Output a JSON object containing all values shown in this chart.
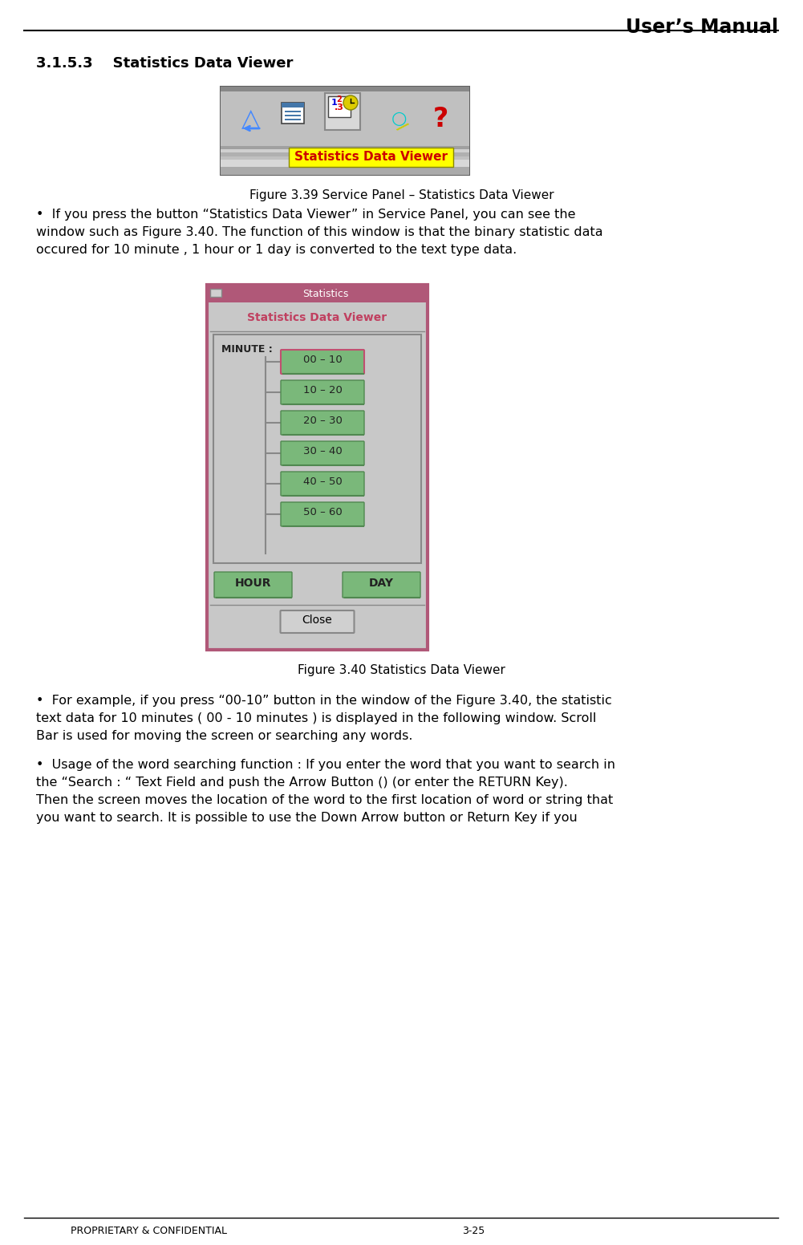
{
  "page_title": "User’s Manual",
  "section_title": "3.1.5.3    Statistics Data Viewer",
  "figure1_caption": "Figure 3.39 Service Panel – Statistics Data Viewer",
  "figure2_caption": "Figure 3.40 Statistics Data Viewer",
  "bullet1_lines": [
    "•  If you press the button “Statistics Data Viewer” in Service Panel, you can see the",
    "window such as Figure 3.40. The function of this window is that the binary statistic data",
    "occured for 10 minute , 1 hour or 1 day is converted to the text type data."
  ],
  "bullet2_lines": [
    "•  For example, if you press “00-10” button in the window of the Figure 3.40, the statistic",
    "text data for 10 minutes ( 00 - 10 minutes ) is displayed in the following window. Scroll",
    "Bar is used for moving the screen or searching any words."
  ],
  "bullet3_lines": [
    "•  Usage of the word searching function : If you enter the word that you want to search in",
    "the “Search : “ Text Field and push the Arrow Button () (or enter the RETURN Key).",
    "Then the screen moves the location of the word to the first location of word or string that",
    "you want to search. It is possible to use the Down Arrow button or Return Key if you"
  ],
  "footer_left": "PROPRIETARY & CONFIDENTIAL",
  "footer_right": "3-25",
  "bg_color": "#ffffff",
  "text_color": "#000000",
  "toolbar_bg": "#b8b8b8",
  "yellow_bg": "#ffff00",
  "yellow_text": "#cc0000",
  "dialog_bg": "#c8c8c8",
  "dialog_titlebar": "#b05878",
  "dialog_inner_title_text": "#c04060",
  "button_green": "#7ab87a",
  "button_green_border": "#c05060",
  "button_green_dark": "#508850",
  "close_button_bg": "#d4d0c8",
  "minute_buttons": [
    "00 – 10",
    "10 – 20",
    "20 – 30",
    "30 – 40",
    "40 – 50",
    "50 – 60"
  ]
}
